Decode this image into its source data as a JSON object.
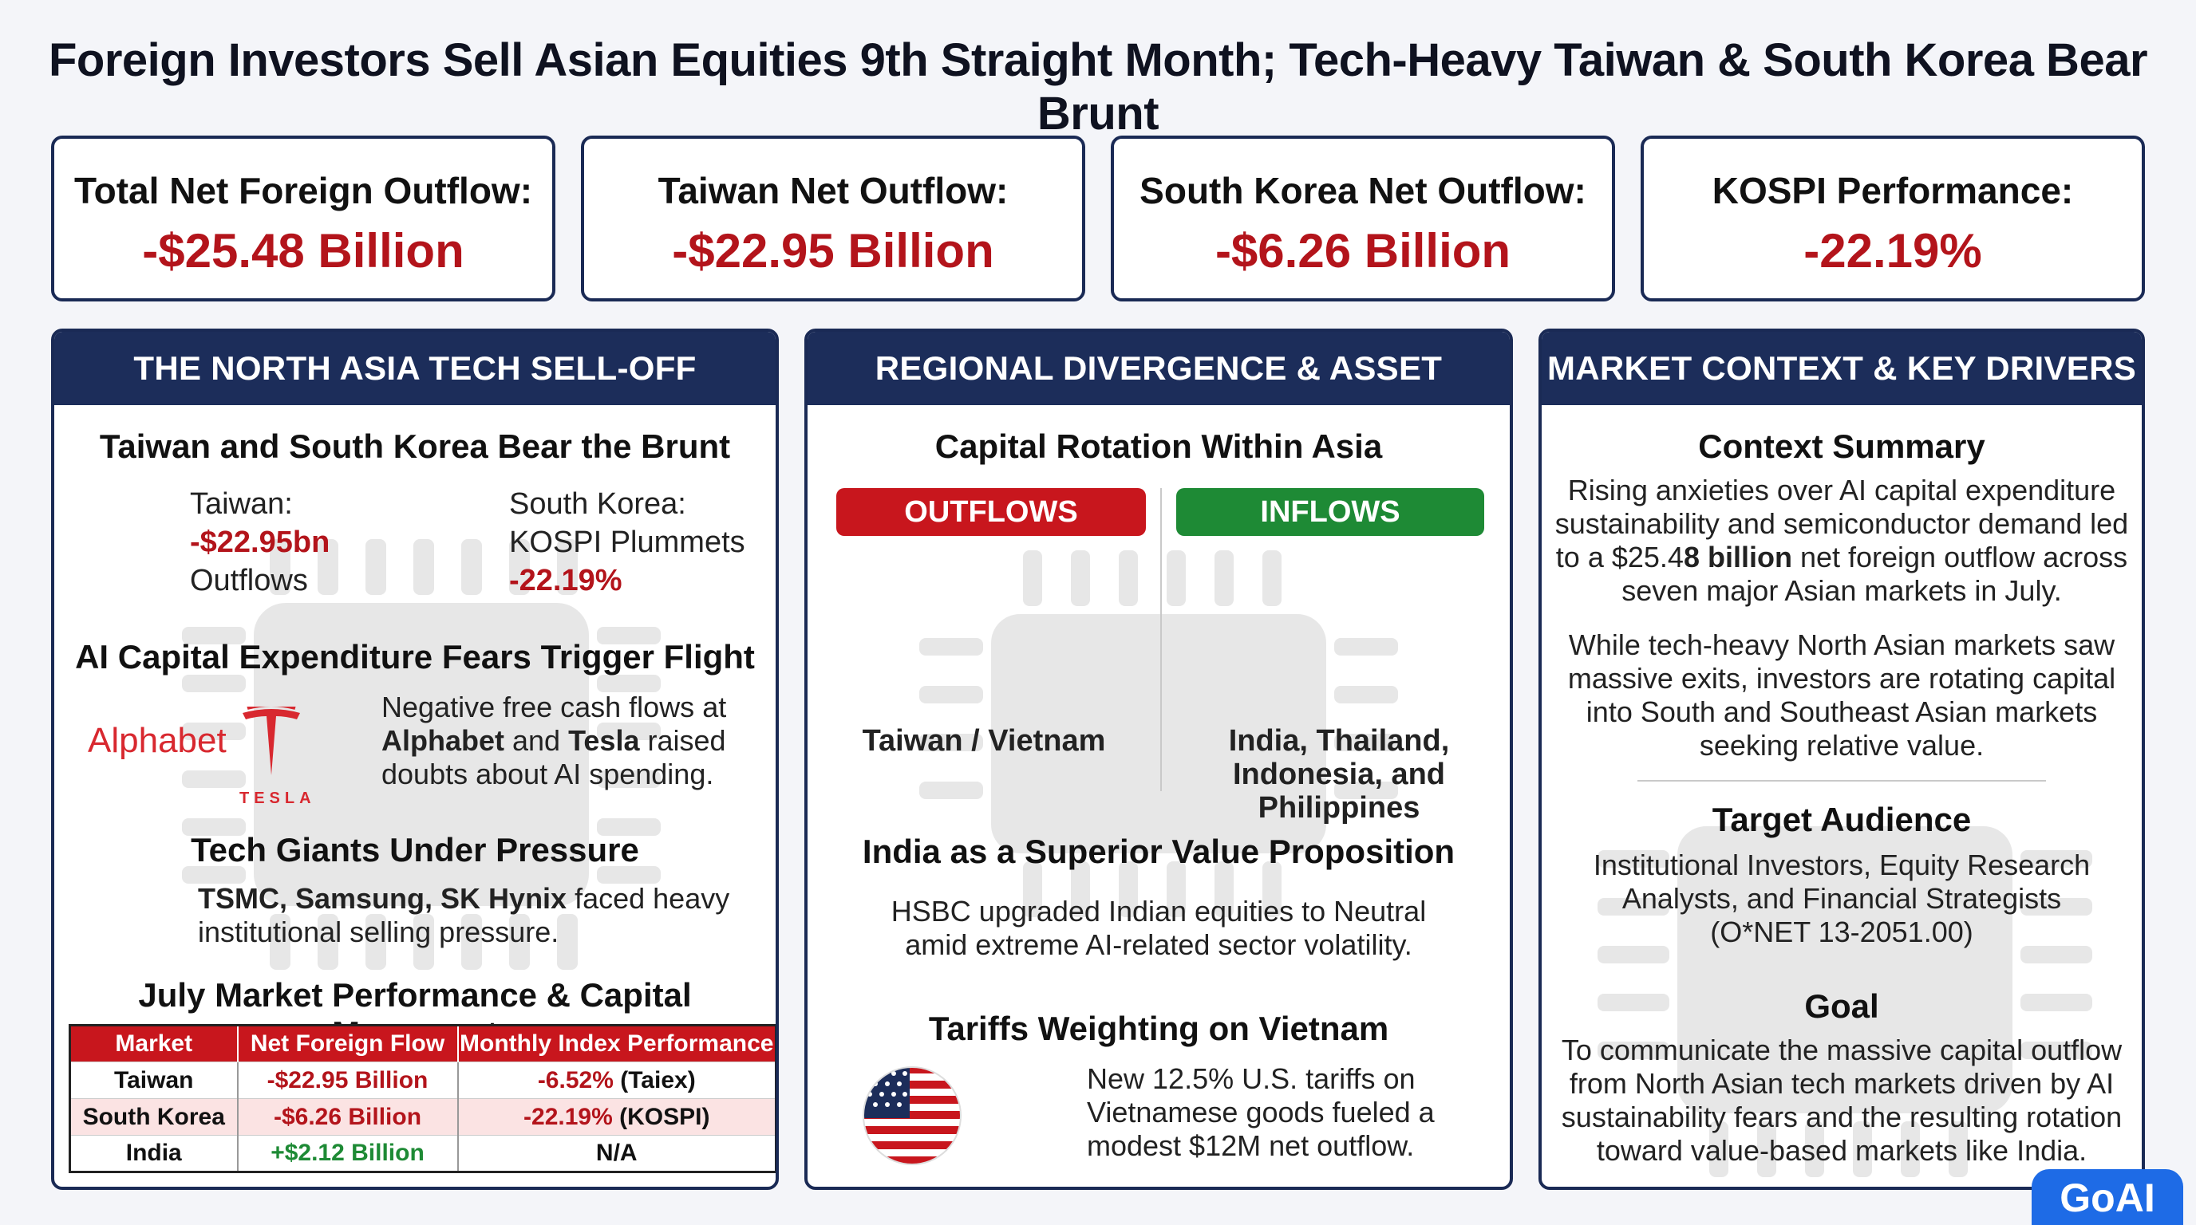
{
  "title": "Foreign Investors Sell Asian Equities 9th Straight Month; Tech-Heavy Taiwan & South Korea Bear Brunt",
  "kpis": [
    {
      "label": "Total Net Foreign Outflow:",
      "value": "-$25.48 Billion"
    },
    {
      "label": "Taiwan Net Outflow:",
      "value": "-$22.95 Billion"
    },
    {
      "label": "South Korea Net Outflow:",
      "value": "-$6.26 Billion"
    },
    {
      "label": "KOSPI Performance:",
      "value": "-22.19%"
    }
  ],
  "left": {
    "header": "THE NORTH ASIA TECH SELL-OFF",
    "brunt_title": "Taiwan and South Korea Bear the Brunt",
    "taiwan_label": "Taiwan:",
    "taiwan_value": "-$22.95bn",
    "taiwan_note": "Outflows",
    "korea_label": "South Korea:",
    "korea_note": "KOSPI Plummets",
    "korea_value": "-22.19%",
    "ai_title": "AI Capital Expenditure Fears Trigger Flight",
    "alphabet_logo": "Alphabet",
    "tesla_logo": "TESLA",
    "ai_text_1": "Negative free cash flows at",
    "ai_bold_1": "Alphabet",
    "ai_text_2": " and ",
    "ai_bold_2": "Tesla",
    "ai_text_3": " raised",
    "ai_text_4": "doubts about AI spending.",
    "giants_title": "Tech Giants Under Pressure",
    "giants_bold": "TSMC, Samsung, SK Hynix",
    "giants_text_1": " faced heavy",
    "giants_text_2": "institutional selling pressure.",
    "table_title": "July Market Performance & Capital Movement",
    "table_headers": [
      "Market",
      "Net Foreign Flow",
      "Monthly Index Performance"
    ],
    "table_rows": [
      {
        "market": "Taiwan",
        "flow": "-$22.95 Billion",
        "perf": "-6.52%",
        "index": " (Taiex)"
      },
      {
        "market": "South Korea",
        "flow": "-$6.26 Billion",
        "perf": "-22.19%",
        "index": " (KOSPI)"
      },
      {
        "market": "India",
        "flow": "+$2.12 Billion",
        "perf": "N/A",
        "index": ""
      }
    ]
  },
  "middle": {
    "header": "REGIONAL DIVERGENCE & ASSET ROTATION",
    "rotation_title": "Capital Rotation Within Asia",
    "outflows_label": "OUTFLOWS",
    "inflows_label": "INFLOWS",
    "outflow_markets": "Taiwan / Vietnam",
    "inflow_markets_1": "India, Thailand,",
    "inflow_markets_2": "Indonesia, and Philippines",
    "india_title": "India as a Superior Value Proposition",
    "india_text_1": "HSBC upgraded Indian equities to Neutral",
    "india_text_2": "amid extreme AI-related sector volatility.",
    "tariff_title": "Tariffs Weighting on Vietnam",
    "tariff_text_1": "New 12.5% U.S. tariffs on",
    "tariff_text_2": "Vietnamese goods fueled a",
    "tariff_text_3": "modest $12M net outflow."
  },
  "right": {
    "header": "MARKET CONTEXT & KEY DRIVERS",
    "context_title": "Context Summary",
    "context_1": "Rising anxieties over AI capital expenditure",
    "context_2": "sustainability and semiconductor demand led",
    "context_3a": "to a $25.4",
    "context_3b": "8 billion",
    "context_3c": " net foreign outflow across",
    "context_4": "seven major Asian markets in July.",
    "context_5": "While tech-heavy North Asian markets saw",
    "context_6": "massive exits, investors are rotating capital",
    "context_7": "into South and Southeast Asian markets",
    "context_8": "seeking relative value.",
    "audience_title": "Target Audience",
    "audience_1": "Institutional Investors, Equity Research",
    "audience_2": "Analysts, and Financial Strategists",
    "audience_3": "(O*NET 13-2051.00)",
    "goal_title": "Goal",
    "goal_1": "To communicate the massive capital outflow",
    "goal_2": "from North Asian tech markets driven by AI",
    "goal_3": "sustainability fears and the resulting rotation",
    "goal_4": "toward value-based markets like India."
  },
  "brand": "GoAI",
  "colors": {
    "navy": "#1c2d5a",
    "red": "#b3141b",
    "green": "#1e8a35",
    "outflow_pill": "#c8161d",
    "inflow_pill": "#1e8a35"
  },
  "icons": [
    "chip-background-icon",
    "tesla-logo-icon",
    "us-flag-icon"
  ]
}
